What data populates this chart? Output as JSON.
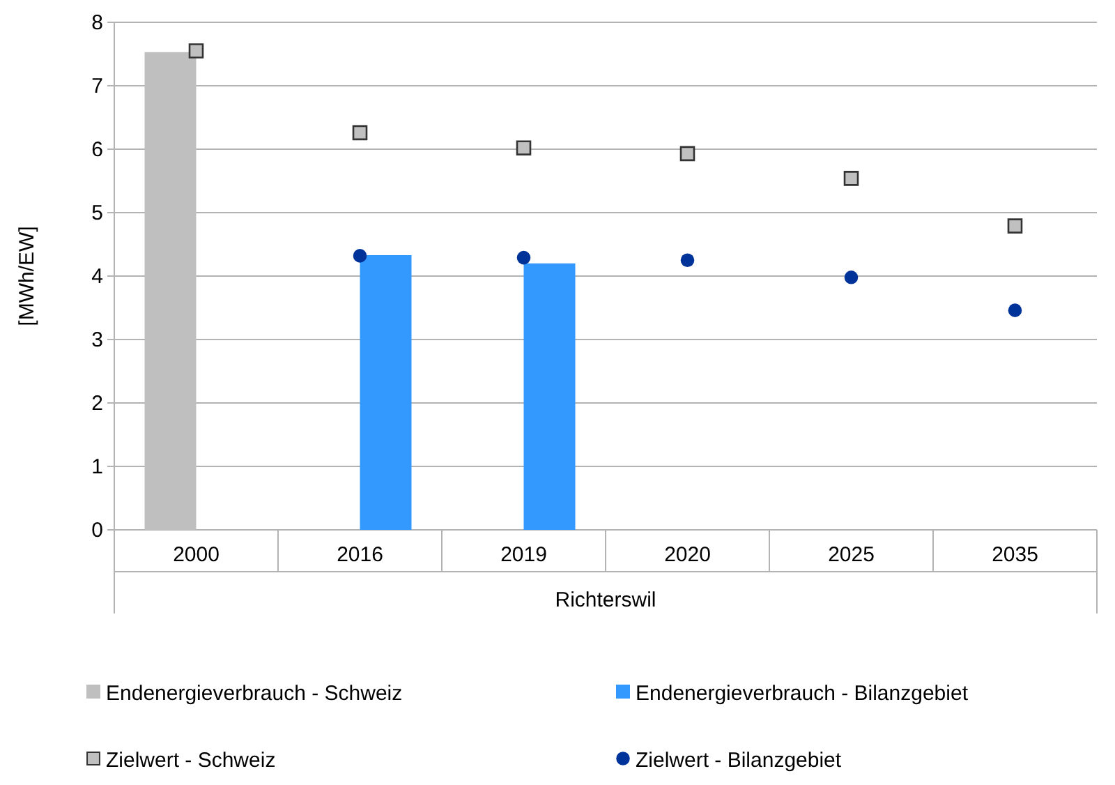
{
  "chart_data": {
    "type": "bar",
    "xlabel": "Richterswil",
    "ylabel": "[MWh/EW]",
    "categories": [
      "2000",
      "2016",
      "2019",
      "2020",
      "2025",
      "2035"
    ],
    "series": [
      {
        "name": "Endenergieverbrauch - Schweiz",
        "color": "#bfbfbf",
        "values": [
          7.53,
          null,
          null,
          null,
          null,
          null
        ]
      },
      {
        "name": "Endenergieverbrauch - Bilanzgebiet",
        "color": "#3399ff",
        "values": [
          null,
          4.33,
          4.2,
          null,
          null,
          null
        ]
      },
      {
        "name": "Zielwert - Schweiz",
        "type": "scatter",
        "marker": "square",
        "color": "#c0c0c0",
        "values": [
          7.55,
          6.26,
          6.02,
          5.93,
          5.54,
          4.79
        ]
      },
      {
        "name": "Zielwert - Bilanzgebiet",
        "type": "scatter",
        "marker": "circle",
        "color": "#003399",
        "values": [
          null,
          4.32,
          4.29,
          4.25,
          3.98,
          3.46
        ]
      }
    ],
    "ylim": [
      0,
      8
    ],
    "yticks": [
      0,
      1,
      2,
      3,
      4,
      5,
      6,
      7,
      8
    ],
    "grid": "y",
    "legend": "bottom"
  }
}
